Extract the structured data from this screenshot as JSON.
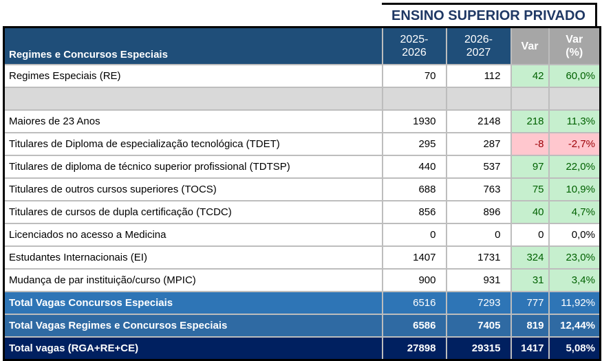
{
  "title": "ENSINO SUPERIOR PRIVADO",
  "header": {
    "label": "Regimes e Concursos Especiais",
    "y1": "2025-\n2026",
    "y2": "2026-\n2027",
    "var": "Var",
    "varpct": "Var\n(%)"
  },
  "rows": [
    {
      "label": "Regimes Especiais (RE)",
      "a": "70",
      "b": "112",
      "v": "42",
      "p": "60,0%",
      "tone": "g"
    },
    {
      "label": "",
      "a": "",
      "b": "",
      "v": "",
      "p": "",
      "tone": "blank"
    },
    {
      "label": "Maiores de 23 Anos",
      "a": "1930",
      "b": "2148",
      "v": "218",
      "p": "11,3%",
      "tone": "g"
    },
    {
      "label": "Titulares de Diploma de especialização tecnológica (TDET)",
      "a": "295",
      "b": "287",
      "v": "-8",
      "p": "-2,7%",
      "tone": "r"
    },
    {
      "label": "Titulares de diploma de técnico superior profissional (TDTSP)",
      "a": "440",
      "b": "537",
      "v": "97",
      "p": "22,0%",
      "tone": "g"
    },
    {
      "label": "Titulares de outros cursos superiores (TOCS)",
      "a": "688",
      "b": "763",
      "v": "75",
      "p": "10,9%",
      "tone": "g"
    },
    {
      "label": "Titulares de cursos de dupla certificação (TCDC)",
      "a": "856",
      "b": "896",
      "v": "40",
      "p": "4,7%",
      "tone": "g"
    },
    {
      "label": "Licenciados no acesso a Medicina",
      "a": "0",
      "b": "0",
      "v": "0",
      "p": "0,0%",
      "tone": ""
    },
    {
      "label": "Estudantes Internacionais (EI)",
      "a": "1407",
      "b": "1731",
      "v": "324",
      "p": "23,0%",
      "tone": "g"
    },
    {
      "label": "Mudança de par instituição/curso (MPIC)",
      "a": "900",
      "b": "931",
      "v": "31",
      "p": "3,4%",
      "tone": "g"
    },
    {
      "label": "Total Vagas Concursos Especiais",
      "a": "6516",
      "b": "7293",
      "v": "777",
      "p": "11,92%",
      "tone": "t1"
    },
    {
      "label": "Total Vagas Regimes e Concursos Especiais",
      "a": "6586",
      "b": "7405",
      "v": "819",
      "p": "12,44%",
      "tone": "t2"
    },
    {
      "label": "Total vagas (RGA+RE+CE)",
      "a": "27898",
      "b": "29315",
      "v": "1417",
      "p": "5,08%",
      "tone": "t3"
    }
  ],
  "colors": {
    "header": "#1F4E79",
    "var_header": "#A6A6A6",
    "positive_bg": "#C6EFCE",
    "negative_bg": "#FFC7CE",
    "total1": "#2E75B6",
    "total2": "#2F6AA3",
    "total3": "#002060"
  }
}
